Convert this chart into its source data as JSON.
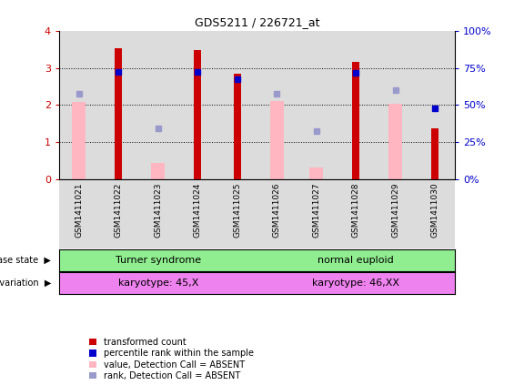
{
  "title": "GDS5211 / 226721_at",
  "samples": [
    "GSM1411021",
    "GSM1411022",
    "GSM1411023",
    "GSM1411024",
    "GSM1411025",
    "GSM1411026",
    "GSM1411027",
    "GSM1411028",
    "GSM1411029",
    "GSM1411030"
  ],
  "transformed_count": [
    0,
    3.52,
    0,
    3.47,
    2.83,
    0,
    0,
    3.17,
    0,
    1.37
  ],
  "percentile_rank_blue": [
    0,
    2.9,
    0,
    2.9,
    2.7,
    0,
    0,
    2.87,
    0,
    1.9
  ],
  "percentile_rank_lightblue": [
    2.3,
    0,
    1.38,
    0,
    0,
    2.3,
    1.3,
    0,
    2.41,
    0
  ],
  "value_absent": [
    2.07,
    0,
    0.43,
    0,
    0,
    2.1,
    0.3,
    0,
    2.03,
    0
  ],
  "ylim": [
    0,
    4
  ],
  "yticks": [
    0,
    1,
    2,
    3,
    4
  ],
  "y2lim": [
    0,
    100
  ],
  "y2ticks": [
    0,
    25,
    50,
    75,
    100
  ],
  "y2ticklabels": [
    "0%",
    "25%",
    "50%",
    "75%",
    "100%"
  ],
  "bar_color": "#CC0000",
  "pink_color": "#FFB6C1",
  "blue_color": "#0000CC",
  "lightblue_color": "#9999CC",
  "col_bg_color": "#DCDCDC",
  "tick_color_left": "#CC0000",
  "tick_color_right": "#0000CC",
  "disease_labels": [
    "Turner syndrome",
    "normal euploid"
  ],
  "disease_starts": [
    0,
    5
  ],
  "disease_ends": [
    4,
    9
  ],
  "disease_color": "#90EE90",
  "genotype_labels": [
    "karyotype: 45,X",
    "karyotype: 46,XX"
  ],
  "genotype_starts": [
    0,
    5
  ],
  "genotype_ends": [
    4,
    9
  ],
  "genotype_color": "#EE82EE",
  "legend_labels": [
    "transformed count",
    "percentile rank within the sample",
    "value, Detection Call = ABSENT",
    "rank, Detection Call = ABSENT"
  ],
  "legend_colors": [
    "#CC0000",
    "#0000CC",
    "#FFB6C1",
    "#9999CC"
  ]
}
